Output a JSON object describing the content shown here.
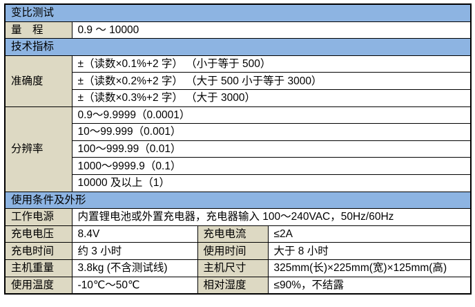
{
  "colors": {
    "header_bg": "#8DB4E2",
    "label_bg": "#DDD9C3",
    "value_bg": "#FFFFFF",
    "border": "#000000"
  },
  "sections": {
    "ratio_test": {
      "title": "变比测试"
    },
    "range": {
      "label": "量　程",
      "value": "0.9 ～ 10000"
    },
    "tech_spec": {
      "title": "技术指标"
    },
    "accuracy": {
      "label": "准确度",
      "rows": [
        "±（读数×0.1%+2 字） （小于等于 500）",
        "±（读数×0.2%+2 字） （大于 500 小于等于 3000）",
        "±（读数×0.3%+2 字） （大于 3000）"
      ]
    },
    "resolution": {
      "label": "分辨率",
      "rows": [
        "0.9～9.9999（0.0001）",
        "10～99.999（0.001）",
        "100～999.99（0.01）",
        "1000～9999.9（0.1）",
        "10000 及以上（1）"
      ]
    },
    "conditions": {
      "title": "使用条件及外形"
    },
    "power": {
      "label": "工作电源",
      "value": "内置锂电池或外置充电器，充电器输入 100～240VAC，50Hz/60Hz"
    },
    "pairs": [
      {
        "l1": "充电电压",
        "v1": "8.4V",
        "l2": "充电电流",
        "v2": "≤2A"
      },
      {
        "l1": "充电时间",
        "v1": "约 3 小时",
        "l2": "使用时间",
        "v2": "大于 8 小时"
      },
      {
        "l1": "主机重量",
        "v1": "3.8kg (不含测试线)",
        "l2": "主机尺寸",
        "v2": "325mm(长)×225mm(宽)×125mm(高)"
      },
      {
        "l1": "使用温度",
        "v1": "-10℃～50℃",
        "l2": "相对湿度",
        "v2": "≤90%，不结露"
      }
    ]
  }
}
